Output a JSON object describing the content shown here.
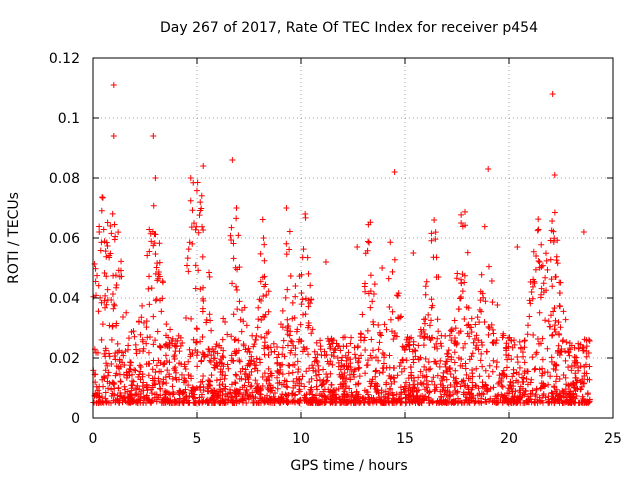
{
  "chart_data": {
    "type": "scatter",
    "title": "Day 267 of 2017, Rate Of TEC Index for receiver p454",
    "xlabel": "GPS time / hours",
    "ylabel": "ROTI / TECUs",
    "xlim": [
      0,
      25
    ],
    "ylim": [
      0,
      0.12
    ],
    "xticks": [
      0,
      5,
      10,
      15,
      20,
      25
    ],
    "yticks": [
      0,
      0.02,
      0.04,
      0.06,
      0.08,
      0.1,
      0.12
    ],
    "xtick_labels": [
      "0",
      "5",
      "10",
      "15",
      "20",
      "25"
    ],
    "ytick_labels": [
      "0",
      "0.02",
      "0.04",
      "0.06",
      "0.08",
      "0.1",
      "0.12"
    ],
    "grid": true,
    "marker": "+",
    "color": "#ff0000",
    "series": [
      {
        "name": "p454",
        "x_range": [
          0,
          23.9
        ],
        "notable_points": [
          {
            "x": 1.0,
            "y": 0.111
          },
          {
            "x": 22.1,
            "y": 0.108
          },
          {
            "x": 1.0,
            "y": 0.094
          },
          {
            "x": 2.9,
            "y": 0.094
          },
          {
            "x": 6.7,
            "y": 0.086
          },
          {
            "x": 5.3,
            "y": 0.084
          },
          {
            "x": 19.0,
            "y": 0.083
          },
          {
            "x": 14.5,
            "y": 0.082
          },
          {
            "x": 22.2,
            "y": 0.081
          },
          {
            "x": 4.7,
            "y": 0.08
          },
          {
            "x": 3.0,
            "y": 0.08
          },
          {
            "x": 6.9,
            "y": 0.07
          },
          {
            "x": 9.3,
            "y": 0.07
          },
          {
            "x": 10.2,
            "y": 0.068
          },
          {
            "x": 16.4,
            "y": 0.066
          },
          {
            "x": 17.7,
            "y": 0.065
          },
          {
            "x": 23.6,
            "y": 0.062
          },
          {
            "x": 0.3,
            "y": 0.062
          },
          {
            "x": 8.2,
            "y": 0.06
          },
          {
            "x": 12.7,
            "y": 0.057
          },
          {
            "x": 20.4,
            "y": 0.057
          },
          {
            "x": 15.4,
            "y": 0.055
          },
          {
            "x": 11.2,
            "y": 0.052
          },
          {
            "x": 13.9,
            "y": 0.05
          }
        ]
      }
    ]
  }
}
